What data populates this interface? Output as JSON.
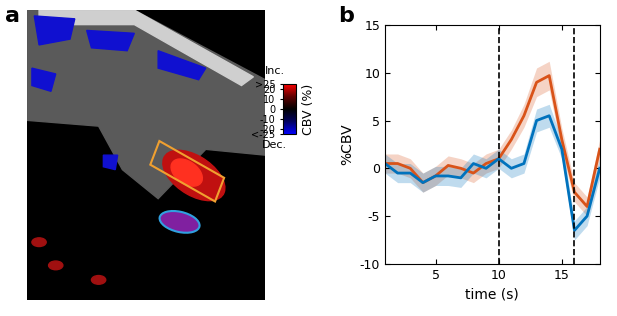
{
  "panel_labels": [
    "a",
    "b"
  ],
  "image": {
    "colorbar": {
      "title": "CBV (%)",
      "top_label": "Inc.",
      "bottom_label": "Dec.",
      "range": [
        -25,
        25
      ],
      "ticks": [
        {
          "value": 25,
          "label": ">25"
        },
        20,
        10,
        0,
        -10,
        -20,
        {
          "value": -25,
          "label": "<-25"
        }
      ]
    }
  },
  "chart_data": {
    "type": "line",
    "x": [
      1,
      2,
      3,
      4,
      5,
      6,
      7,
      8,
      9,
      10,
      11,
      12,
      13,
      14,
      15,
      16,
      17,
      18
    ],
    "series": [
      {
        "color": "#d95319",
        "values": [
          0.5,
          0.5,
          0,
          -1.5,
          -0.8,
          0.3,
          0,
          -0.5,
          0.5,
          1,
          3,
          5.5,
          9,
          9.7,
          3,
          -2.5,
          -4,
          2
        ],
        "errors": [
          1,
          1,
          1,
          1,
          1,
          1,
          1,
          1,
          1,
          1,
          1,
          1.2,
          1.5,
          1.5,
          1.2,
          1,
          1,
          1
        ]
      },
      {
        "color": "#0072bd",
        "values": [
          0.5,
          -0.5,
          -0.5,
          -1.5,
          -0.8,
          -0.8,
          -1,
          0.5,
          0,
          1,
          0,
          0.5,
          5,
          5.5,
          2,
          -6.5,
          -5,
          0
        ],
        "errors": [
          1,
          1,
          1,
          1,
          1,
          1,
          1,
          1,
          1,
          1,
          1,
          1,
          1.2,
          1.2,
          1,
          1,
          1,
          1
        ]
      }
    ],
    "vlines": [
      10,
      16
    ],
    "xlabel": "time (s)",
    "ylabel": "%CBV",
    "xlim": [
      1,
      18
    ],
    "xticks": [
      5,
      10,
      15
    ],
    "ylim": [
      -10,
      15
    ],
    "yticks": [
      -10,
      -5,
      0,
      5,
      10,
      15
    ]
  }
}
